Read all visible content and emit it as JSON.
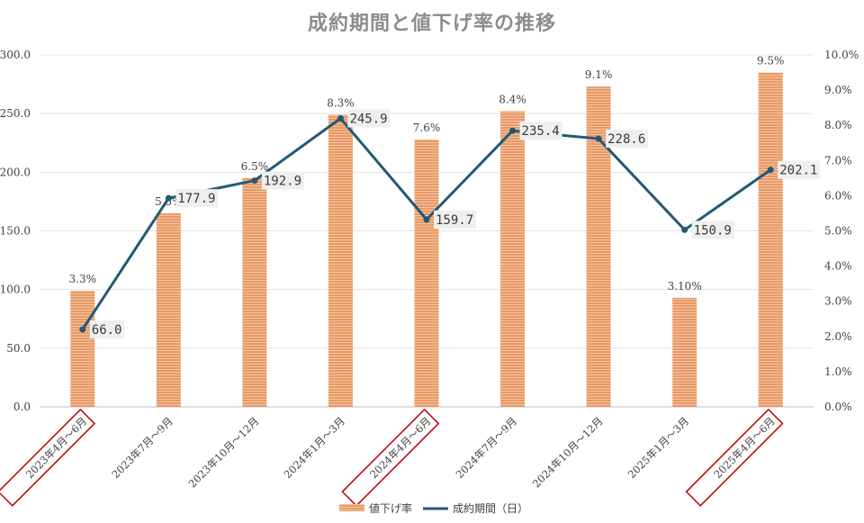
{
  "colors": {
    "bar": "#e89a66",
    "bar_stripe": "#f2c4a2",
    "line": "#215a73",
    "grid": "#e4e4e4",
    "highlight": "#c00000",
    "label_bg": "#efefef",
    "title": "#8c8c8c"
  },
  "chart_data": {
    "type": "bar",
    "title": "成約期間と値下げ率の推移",
    "categories": [
      "2023年4月～6月",
      "2023年7月～9月",
      "2023年10月～12月",
      "2024年1月～3月",
      "2024年4月～6月",
      "2024年7月～9月",
      "2024年10月～12月",
      "2025年1月～3月",
      "2025年4月～6月"
    ],
    "highlighted_categories": [
      0,
      4,
      8
    ],
    "series": [
      {
        "name": "値下げ率",
        "type": "bar",
        "axis": "right",
        "values": [
          3.3,
          5.5,
          6.5,
          8.3,
          7.6,
          8.4,
          9.1,
          3.1,
          9.5
        ],
        "labels": [
          "3.3%",
          "5.5%",
          "6.5%",
          "8.3%",
          "7.6%",
          "8.4%",
          "9.1%",
          "3.10%",
          "9.5%"
        ]
      },
      {
        "name": "成約期間（日）",
        "type": "line",
        "axis": "left",
        "values": [
          66.0,
          177.9,
          192.9,
          245.9,
          159.7,
          235.4,
          228.6,
          150.9,
          202.1
        ],
        "labels": [
          "66.0",
          "177.9",
          "192.9",
          "245.9",
          "159.7",
          "235.4",
          "228.6",
          "150.9",
          "202.1"
        ]
      }
    ],
    "y_left": {
      "lim": [
        0,
        300
      ],
      "ticks": [
        "0.0",
        "50.0",
        "100.0",
        "150.0",
        "200.0",
        "250.0",
        "300.0"
      ]
    },
    "y_right": {
      "lim": [
        0,
        10
      ],
      "ticks": [
        "0.0%",
        "1.0%",
        "2.0%",
        "3.0%",
        "4.0%",
        "5.0%",
        "6.0%",
        "7.0%",
        "8.0%",
        "9.0%",
        "10.0%"
      ]
    },
    "grid": true,
    "legend_position": "bottom"
  }
}
